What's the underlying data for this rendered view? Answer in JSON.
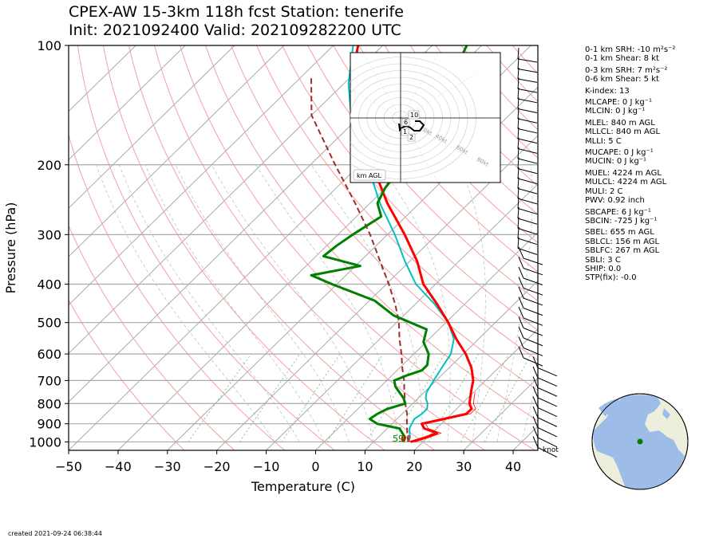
{
  "header": {
    "title_line1": "CPEX-AW 15-3km  118h fcst  Station: tenerife",
    "title_line2": "Init: 2021092400  Valid: 202109282200 UTC"
  },
  "footer": {
    "created": "created 2021-09-24 06:38:44"
  },
  "wind_unit_label": "knot",
  "hodograph": {
    "legend": "km AGL",
    "ring_labels": [
      "20kt",
      "40kt",
      "60kt",
      "80kt"
    ],
    "height_labels": [
      "10",
      "6",
      "1",
      "2"
    ]
  },
  "indices": [
    "0-1 km SRH: -10 m²s⁻²",
    "0-1 km Shear: 8 kt",
    "0-3 km SRH: 7 m²s⁻²",
    "0-6 km Shear: 5 kt",
    "K-index: 13",
    "MLCAPE: 0 J kg⁻¹",
    "MLCIN: 0 J kg⁻¹",
    "MLEL: 840 m AGL",
    "MLLCL: 840 m AGL",
    "MLLI: 5 C",
    "MUCAPE: 0 J kg⁻¹",
    "MUCIN: 0 J kg⁻¹",
    "MUEL: 4224 m AGL",
    "MULCL: 4224 m AGL",
    "MULI: 2 C",
    "PWV: 0.92 inch",
    "SBCAPE: 6 J kg⁻¹",
    "SBCIN: -725 J kg⁻¹",
    "SBEL: 655 m AGL",
    "SBLCL: 156 m AGL",
    "SBLFC: 267 m AGL",
    "SBLI: 3 C",
    "SHIP: 0.0",
    "STP(fix): -0.0"
  ],
  "chart_data": {
    "type": "skew-t log-p",
    "xlabel": "Temperature (C)",
    "ylabel": "Pressure (hPa)",
    "xlim": [
      -50,
      45
    ],
    "ylim": [
      1050,
      100
    ],
    "y_scale": "log",
    "x_ticks": [
      -50,
      -40,
      -30,
      -20,
      -10,
      0,
      10,
      20,
      30,
      40
    ],
    "y_ticks": [
      100,
      200,
      300,
      400,
      500,
      600,
      700,
      800,
      900,
      1000
    ],
    "surface_labels": {
      "dewpoint": "59",
      "temperature": "61"
    },
    "colors": {
      "temperature": "#ff0000",
      "dewpoint": "#008000",
      "virtual_temperature": "#00c0c0",
      "parcel": "#a52a2a",
      "dry_adiabat": "#f4a0a0",
      "moist_adiabat": "#bbbbbb",
      "mixing_ratio": "#7fbf7f",
      "isotherm": "#aaaaaa"
    },
    "series": [
      {
        "p": [
          1000,
          975,
          950,
          925,
          900,
          875,
          850,
          825,
          800,
          775,
          750,
          725,
          700,
          650,
          600,
          550,
          500,
          450,
          400,
          350,
          300,
          250,
          200,
          175,
          150,
          125,
          100
        ],
        "values": [
          17.5,
          19.5,
          21,
          17.5,
          16,
          19.5,
          23,
          23,
          21.5,
          20.5,
          19.5,
          18.5,
          17.5,
          14.5,
          10.5,
          5.5,
          0.5,
          -5.5,
          -12.5,
          -18.5,
          -26.5,
          -36.5,
          -47.5,
          -54,
          -61.5,
          -68.5,
          -75
        ]
      },
      {
        "p": [
          1000,
          975,
          950,
          925,
          900,
          875,
          850,
          825,
          800,
          775,
          750,
          725,
          700,
          680,
          660,
          640,
          600,
          560,
          520,
          480,
          440,
          400,
          380,
          360,
          340,
          320,
          300,
          270,
          250,
          230,
          210,
          200,
          180,
          160,
          140,
          120,
          100
        ],
        "values": [
          16,
          15.5,
          14,
          12.5,
          7,
          4.5,
          5,
          6,
          8.5,
          7,
          5,
          3,
          1.5,
          3,
          5,
          5,
          3,
          -0.5,
          -2.5,
          -12,
          -19,
          -31,
          -37,
          -29,
          -38.5,
          -38,
          -37,
          -35,
          -38.5,
          -40,
          -41,
          -41.5,
          -43,
          -47,
          -47.5,
          -49.5,
          -53
        ]
      },
      {
        "p": [
          1000,
          975,
          950,
          925,
          900,
          875,
          850,
          825,
          800,
          775,
          750,
          725,
          700,
          650,
          600,
          550,
          500,
          450,
          400,
          350,
          300,
          250,
          200,
          175,
          150,
          125,
          100
        ],
        "values": [
          17,
          16.5,
          15.5,
          14.5,
          14,
          13.5,
          14,
          14,
          13,
          11.5,
          10.5,
          10,
          9.5,
          8.5,
          7.5,
          5,
          0.5,
          -6,
          -14,
          -21,
          -28.5,
          -38,
          -48.5,
          -54.5,
          -62,
          -69,
          -76
        ]
      },
      {
        "p": [
          1000,
          950,
          900,
          850,
          800,
          750,
          700,
          650,
          600,
          550,
          500,
          450,
          400,
          350,
          300,
          250,
          200,
          150,
          120
        ],
        "values": [
          17,
          15,
          13,
          11,
          8.5,
          6,
          3.5,
          0.5,
          -2.5,
          -6,
          -9.5,
          -14,
          -19.5,
          -26,
          -33.5,
          -43,
          -55,
          -70,
          -78
        ]
      }
    ]
  }
}
